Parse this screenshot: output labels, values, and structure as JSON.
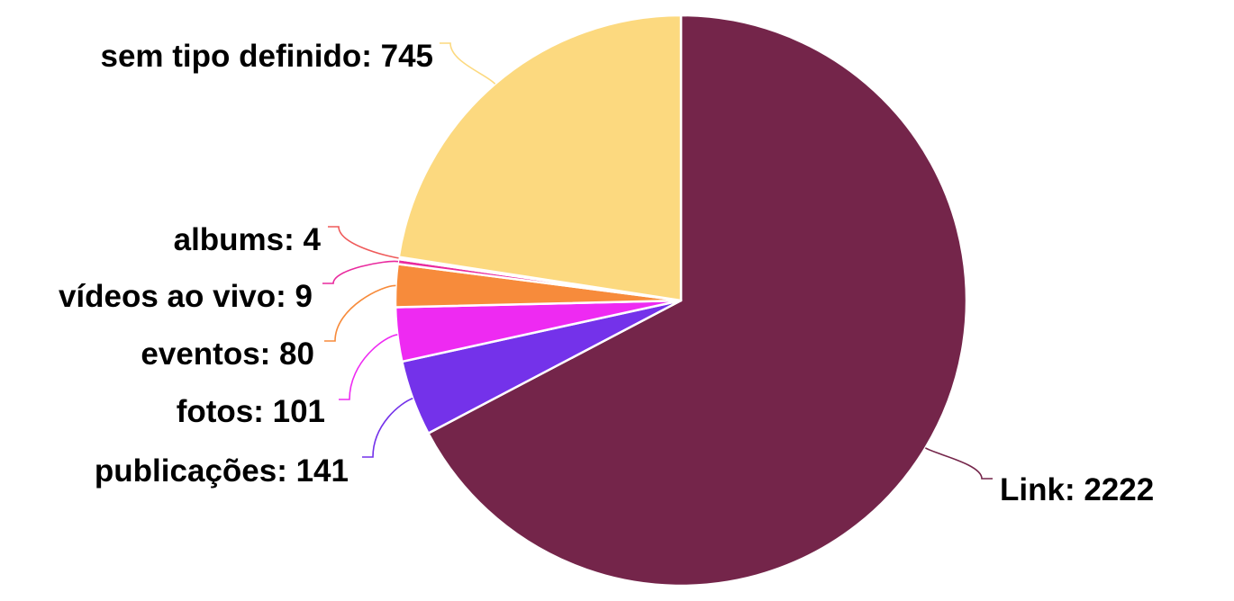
{
  "chart_data": {
    "type": "pie",
    "title": "",
    "start": "top",
    "direction": "clockwise",
    "slices": [
      {
        "name": "Link",
        "value": 2222,
        "color": "#74254a",
        "label": "Link: 2222"
      },
      {
        "name": "publicações",
        "value": 141,
        "color": "#7432ea",
        "label": "publicações: 141"
      },
      {
        "name": "fotos",
        "value": 101,
        "color": "#ee2af2",
        "label": "fotos: 101"
      },
      {
        "name": "eventos",
        "value": 80,
        "color": "#f78b3b",
        "label": "eventos: 80"
      },
      {
        "name": "vídeos ao vivo",
        "value": 9,
        "color": "#e92a9e",
        "label": "vídeos ao vivo: 9"
      },
      {
        "name": "albums",
        "value": 4,
        "color": "#ef5a5a",
        "label": "albums: 4"
      },
      {
        "name": "sem tipo definido",
        "value": 745,
        "color": "#fcd97f",
        "label": "sem tipo definido: 745"
      }
    ]
  }
}
